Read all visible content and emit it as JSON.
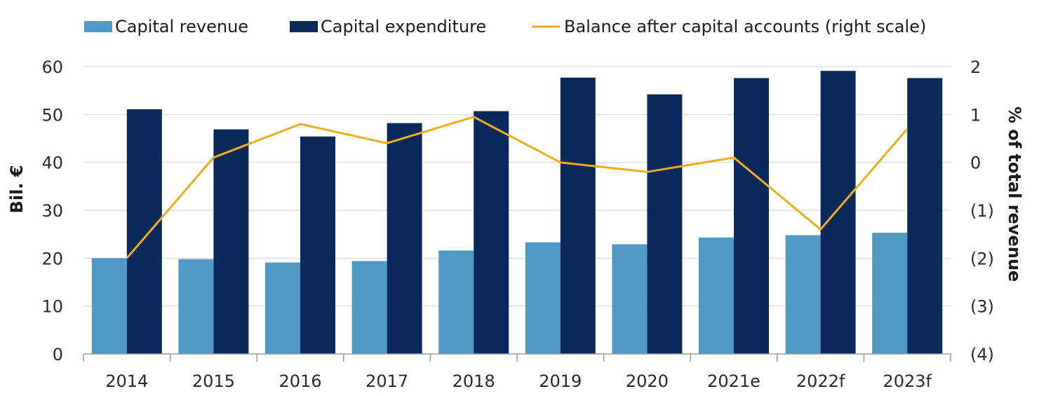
{
  "chart_data": {
    "type": "bar",
    "categories": [
      "2014",
      "2015",
      "2016",
      "2017",
      "2018",
      "2019",
      "2020",
      "2021e",
      "2022f",
      "2023f"
    ],
    "series": [
      {
        "name": "Capital revenue",
        "kind": "bar",
        "axis": "left",
        "color": "#4f9ac4",
        "values": [
          20.0,
          19.8,
          19.1,
          19.4,
          21.6,
          23.3,
          22.9,
          24.3,
          24.8,
          25.3
        ]
      },
      {
        "name": "Capital expenditure",
        "kind": "bar",
        "axis": "left",
        "color": "#0b2a5b",
        "values": [
          51.1,
          46.9,
          45.4,
          48.2,
          50.7,
          57.7,
          54.2,
          57.6,
          59.1,
          57.6
        ]
      },
      {
        "name": "Balance after capital accounts (right scale)",
        "kind": "line",
        "axis": "right",
        "color": "#f2ab1c",
        "values": [
          -2.0,
          0.1,
          0.8,
          0.4,
          0.95,
          0.0,
          -0.2,
          0.1,
          -1.4,
          0.7
        ]
      }
    ],
    "ylabel": "Bil. €",
    "y2label": "% of total revenue",
    "ylim": [
      0,
      60
    ],
    "y2lim": [
      -4,
      2
    ],
    "yticks": [
      "0",
      "10",
      "20",
      "30",
      "40",
      "50",
      "60"
    ],
    "y2ticks": [
      "(4)",
      "(3)",
      "(2)",
      "(1)",
      "0",
      "1",
      "2"
    ],
    "grid": true,
    "legend_position": "top"
  }
}
